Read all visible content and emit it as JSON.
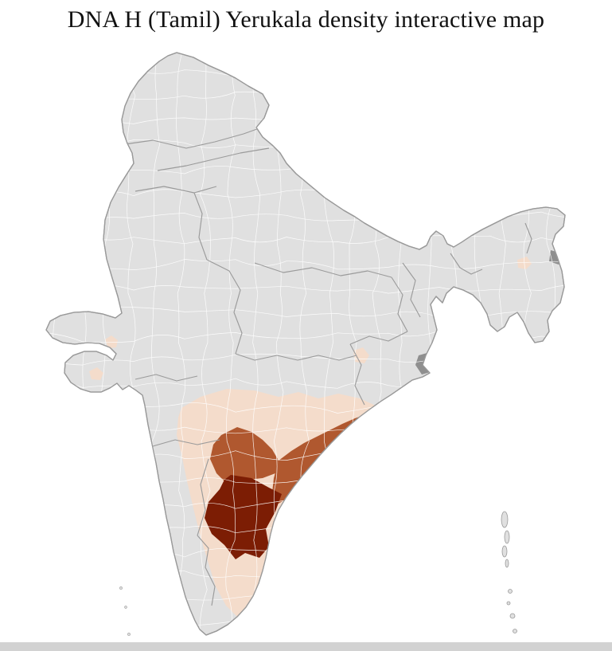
{
  "page": {
    "title": "DNA H (Tamil) Yerukala density interactive map"
  },
  "map": {
    "colors": {
      "background": "#ffffff",
      "district_fill": "#e0e0e0",
      "district_border": "#ffffff",
      "state_border": "#9b9b9b",
      "outline": "#999999",
      "low": "#f4dccb",
      "medium": "#b0582f",
      "high": "#7c1d04",
      "dark_gray": "#8f8f8f",
      "bottom_strip": "#d2d2d2",
      "title_color": "#111111"
    }
  }
}
